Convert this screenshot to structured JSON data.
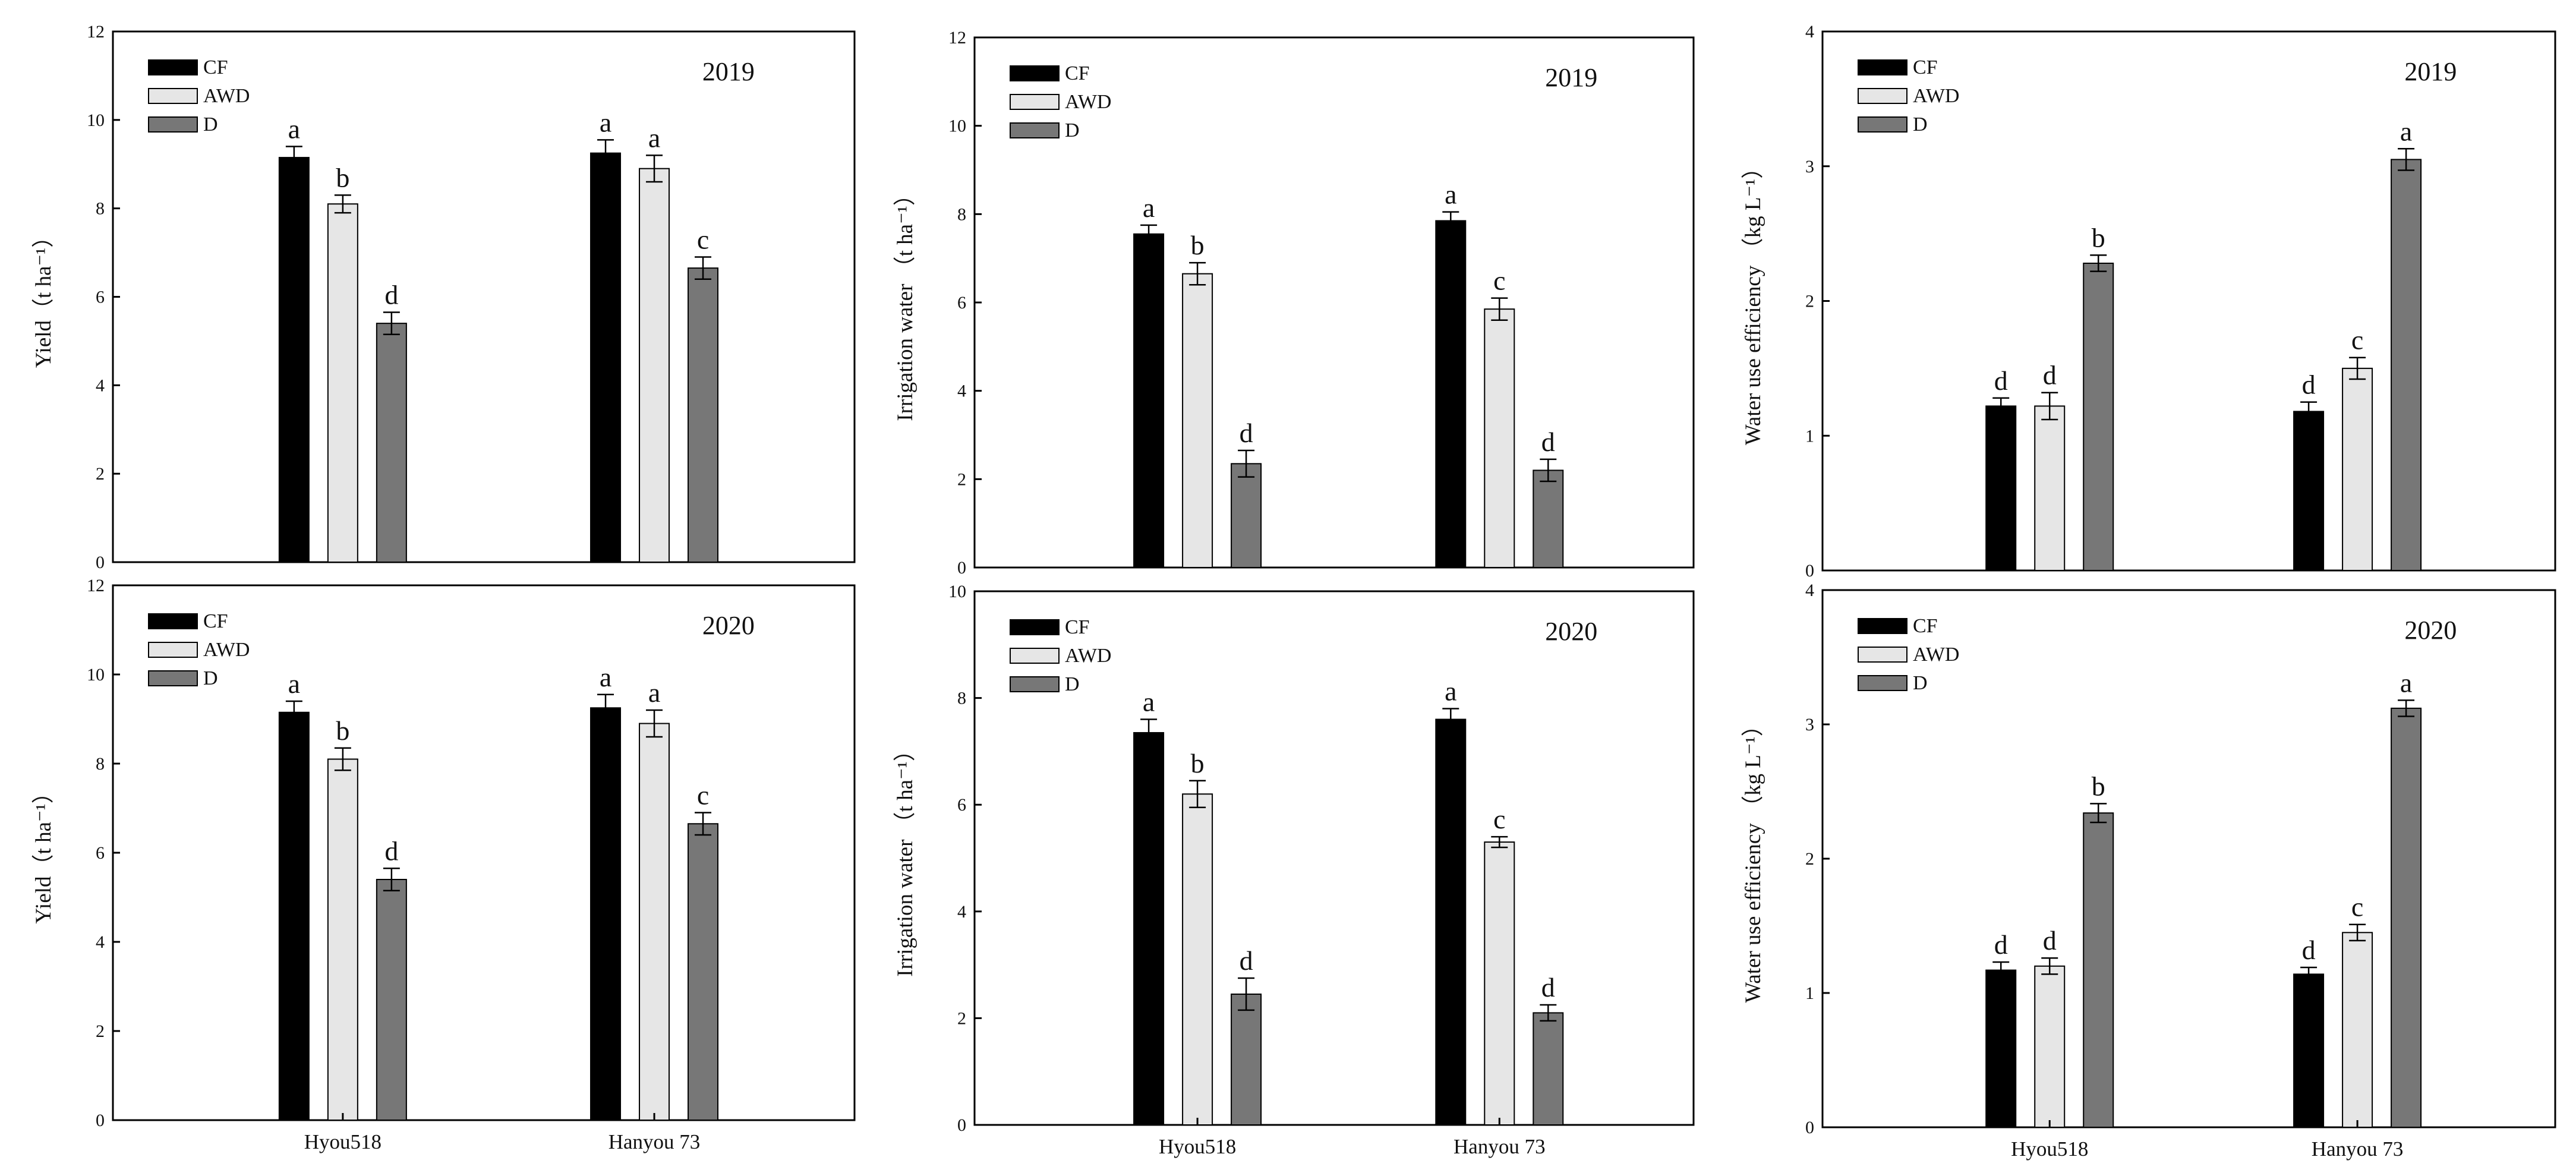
{
  "colors": {
    "CF": "#000000",
    "AWD": "#e6e6e6",
    "D": "#777777",
    "axis": "#000000",
    "error": "#000000"
  },
  "chart_data": [
    {
      "type": "bar",
      "year": "2019",
      "ylabel": "Yield（t ha⁻¹）",
      "ylim": [
        0,
        12
      ],
      "yticks": [
        "0",
        "2",
        "4",
        "6",
        "8",
        "10",
        "12"
      ],
      "categories": [
        "Hyou518",
        "Hanyou 73"
      ],
      "show_categories": false,
      "legend": [
        "CF",
        "AWD",
        "D"
      ],
      "series": [
        {
          "name": "CF",
          "values": [
            9.15,
            9.25
          ],
          "errors": [
            0.25,
            0.3
          ],
          "letters": [
            "a",
            "a"
          ]
        },
        {
          "name": "AWD",
          "values": [
            8.1,
            8.9
          ],
          "errors": [
            0.2,
            0.3
          ],
          "letters": [
            "b",
            "a"
          ]
        },
        {
          "name": "D",
          "values": [
            5.4,
            6.65
          ],
          "errors": [
            0.25,
            0.25
          ],
          "letters": [
            "d",
            "c"
          ]
        }
      ]
    },
    {
      "type": "bar",
      "year": "2019",
      "ylabel": "Irrigation water （t ha⁻¹）",
      "ylim": [
        0,
        12
      ],
      "yticks": [
        "0",
        "2",
        "4",
        "6",
        "8",
        "10",
        "12"
      ],
      "categories": [
        "Hyou518",
        "Hanyou 73"
      ],
      "show_categories": false,
      "legend": [
        "CF",
        "AWD",
        "D"
      ],
      "series": [
        {
          "name": "CF",
          "values": [
            7.55,
            7.85
          ],
          "errors": [
            0.2,
            0.2
          ],
          "letters": [
            "a",
            "a"
          ]
        },
        {
          "name": "AWD",
          "values": [
            6.65,
            5.85
          ],
          "errors": [
            0.25,
            0.25
          ],
          "letters": [
            "b",
            "c"
          ]
        },
        {
          "name": "D",
          "values": [
            2.35,
            2.2
          ],
          "errors": [
            0.3,
            0.25
          ],
          "letters": [
            "d",
            "d"
          ]
        }
      ]
    },
    {
      "type": "bar",
      "year": "2019",
      "ylabel": "Water use efficiency （kg L⁻¹）",
      "ylim": [
        0,
        4
      ],
      "yticks": [
        "0",
        "1",
        "2",
        "3",
        "4"
      ],
      "categories": [
        "Hyou518",
        "Hanyou 73"
      ],
      "show_categories": false,
      "legend": [
        "CF",
        "AWD",
        "D"
      ],
      "series": [
        {
          "name": "CF",
          "values": [
            1.22,
            1.18
          ],
          "errors": [
            0.06,
            0.07
          ],
          "letters": [
            "d",
            "d"
          ]
        },
        {
          "name": "AWD",
          "values": [
            1.22,
            1.5
          ],
          "errors": [
            0.1,
            0.08
          ],
          "letters": [
            "d",
            "c"
          ]
        },
        {
          "name": "D",
          "values": [
            2.28,
            3.05
          ],
          "errors": [
            0.06,
            0.08
          ],
          "letters": [
            "b",
            "a"
          ]
        }
      ]
    },
    {
      "type": "bar",
      "year": "2020",
      "ylabel": "Yield（t ha⁻¹）",
      "ylim": [
        0,
        12
      ],
      "yticks": [
        "0",
        "2",
        "4",
        "6",
        "8",
        "10",
        "12"
      ],
      "categories": [
        "Hyou518",
        "Hanyou 73"
      ],
      "show_categories": true,
      "legend": [
        "CF",
        "AWD",
        "D"
      ],
      "series": [
        {
          "name": "CF",
          "values": [
            9.15,
            9.25
          ],
          "errors": [
            0.25,
            0.3
          ],
          "letters": [
            "a",
            "a"
          ]
        },
        {
          "name": "AWD",
          "values": [
            8.1,
            8.9
          ],
          "errors": [
            0.25,
            0.3
          ],
          "letters": [
            "b",
            "a"
          ]
        },
        {
          "name": "D",
          "values": [
            5.4,
            6.65
          ],
          "errors": [
            0.25,
            0.25
          ],
          "letters": [
            "d",
            "c"
          ]
        }
      ]
    },
    {
      "type": "bar",
      "year": "2020",
      "ylabel": "Irrigation water （t ha⁻¹）",
      "ylim": [
        0,
        10
      ],
      "yticks": [
        "0",
        "2",
        "4",
        "6",
        "8",
        "10"
      ],
      "categories": [
        "Hyou518",
        "Hanyou 73"
      ],
      "show_categories": true,
      "legend": [
        "CF",
        "AWD",
        "D"
      ],
      "series": [
        {
          "name": "CF",
          "values": [
            7.35,
            7.6
          ],
          "errors": [
            0.25,
            0.2
          ],
          "letters": [
            "a",
            "a"
          ]
        },
        {
          "name": "AWD",
          "values": [
            6.2,
            5.3
          ],
          "errors": [
            0.25,
            0.1
          ],
          "letters": [
            "b",
            "c"
          ]
        },
        {
          "name": "D",
          "values": [
            2.45,
            2.1
          ],
          "errors": [
            0.3,
            0.15
          ],
          "letters": [
            "d",
            "d"
          ]
        }
      ]
    },
    {
      "type": "bar",
      "year": "2020",
      "ylabel": "Water use efficiency （kg L⁻¹）",
      "ylim": [
        0,
        4
      ],
      "yticks": [
        "0",
        "1",
        "2",
        "3",
        "4"
      ],
      "categories": [
        "Hyou518",
        "Hanyou 73"
      ],
      "show_categories": true,
      "legend": [
        "CF",
        "AWD",
        "D"
      ],
      "series": [
        {
          "name": "CF",
          "values": [
            1.17,
            1.14
          ],
          "errors": [
            0.06,
            0.05
          ],
          "letters": [
            "d",
            "d"
          ]
        },
        {
          "name": "AWD",
          "values": [
            1.2,
            1.45
          ],
          "errors": [
            0.06,
            0.06
          ],
          "letters": [
            "d",
            "c"
          ]
        },
        {
          "name": "D",
          "values": [
            2.34,
            3.12
          ],
          "errors": [
            0.07,
            0.06
          ],
          "letters": [
            "b",
            "a"
          ]
        }
      ]
    }
  ]
}
